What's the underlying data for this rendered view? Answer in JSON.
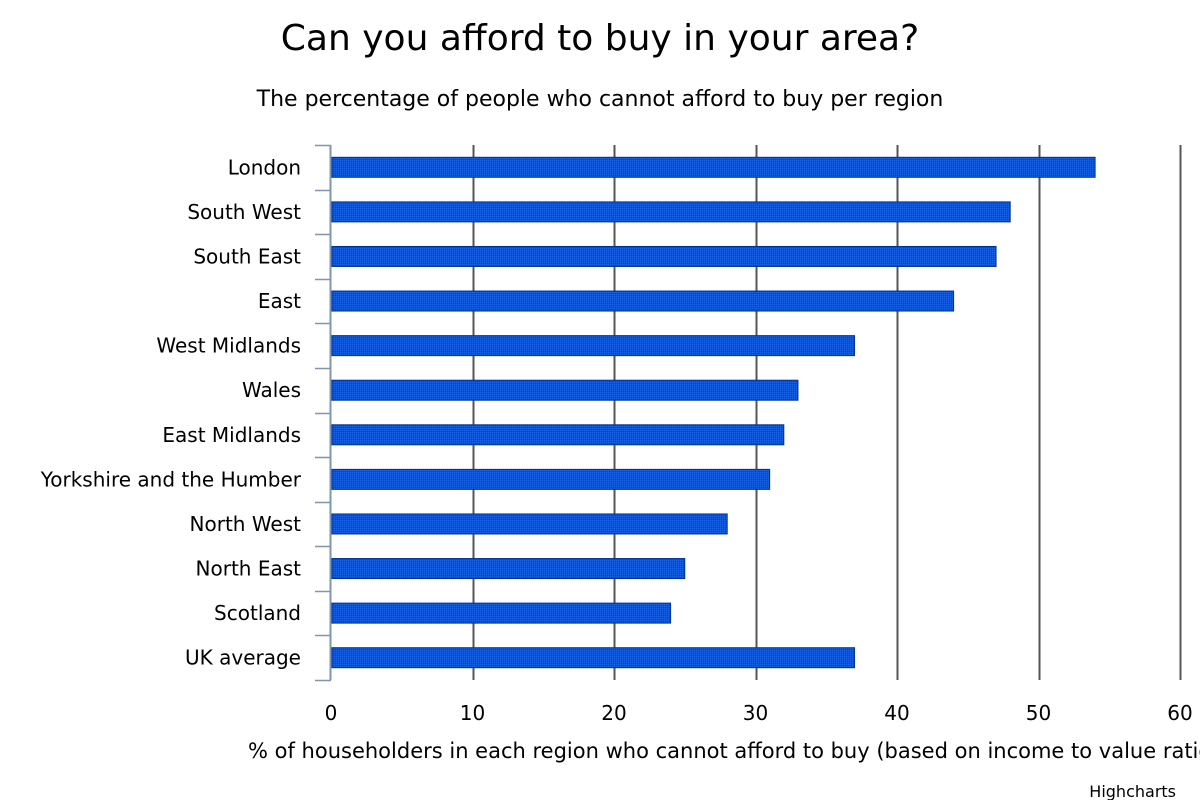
{
  "chart_data": {
    "type": "bar",
    "orientation": "horizontal",
    "title": "Can you afford to buy in your area?",
    "subtitle": "The percentage of people who cannot afford to buy per region",
    "xlabel": "% of householders in each region who cannot afford to buy (based on income to value ratio)",
    "categories": [
      "London",
      "South West",
      "South East",
      "East",
      "West Midlands",
      "Wales",
      "East Midlands",
      "Yorkshire and the Humber",
      "North West",
      "North East",
      "Scotland",
      "UK average"
    ],
    "values": [
      54,
      48,
      47,
      44,
      37,
      33,
      32,
      31,
      28,
      25,
      24,
      37
    ],
    "xlim": [
      0,
      60
    ],
    "ticks": [
      "0",
      "10",
      "20",
      "30",
      "40",
      "50",
      "60"
    ],
    "grid": true,
    "legend": "none",
    "bar_color": "#0b53d6",
    "bar_border_color": "#003399",
    "grid_color": "#555555",
    "axis_color": "#7f95b0",
    "credits": "Highcharts"
  }
}
